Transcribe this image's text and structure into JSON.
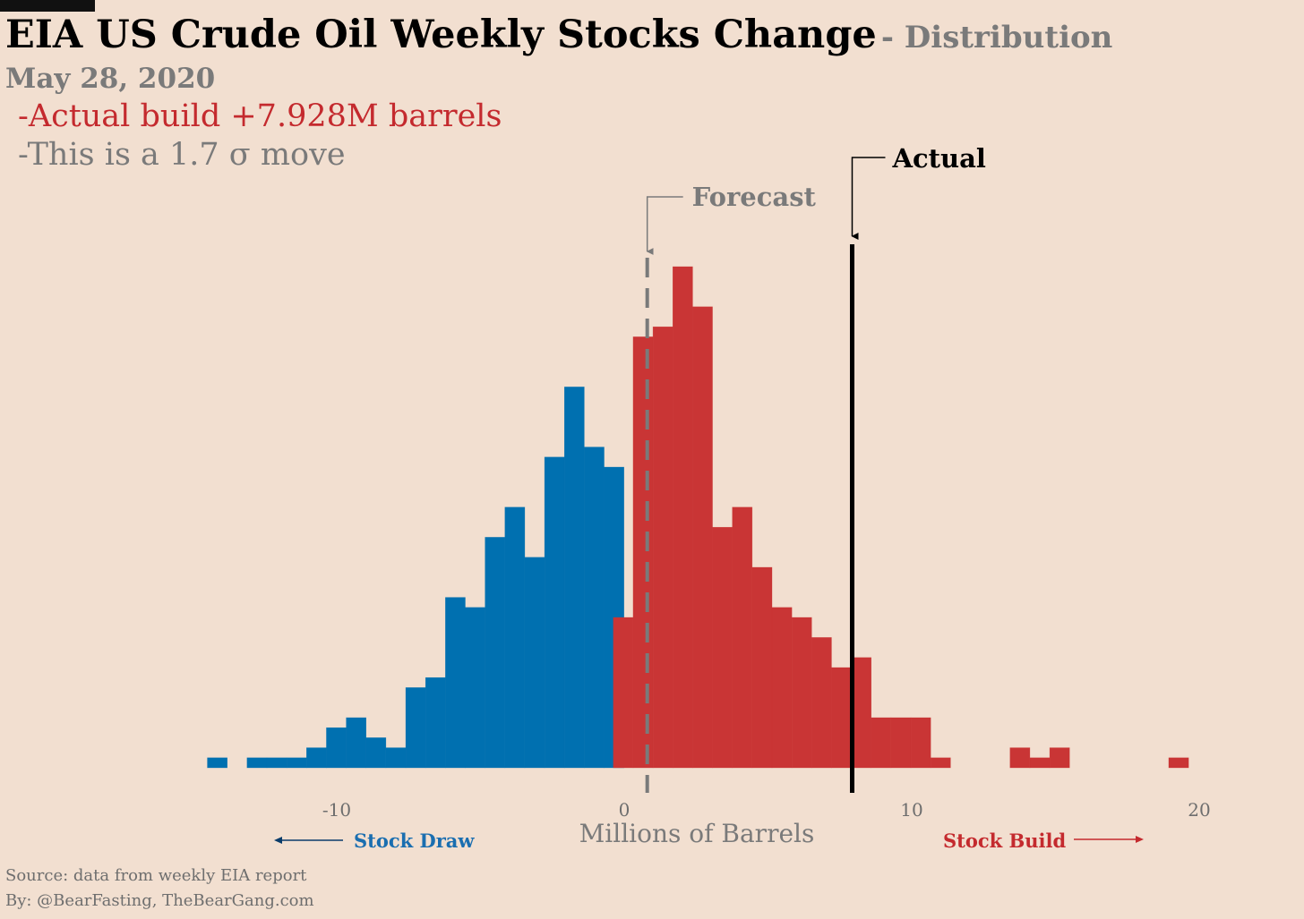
{
  "title": {
    "main": "EIA US Crude Oil Weekly Stocks Change",
    "sub": "- Distribution"
  },
  "date": "May 28, 2020",
  "notes": {
    "actual": "-Actual build +7.928M barrels",
    "sigma": "-This is a 1.7 σ move"
  },
  "footer": {
    "source": "Source: data from  weekly EIA report",
    "by": "By: @BearFasting, TheBearGang.com"
  },
  "colors": {
    "background": "#f2dfd0",
    "draw": "#0070b0",
    "build": "#c93535",
    "forecast": "#7a7a7a",
    "actual": "#000000"
  },
  "chart_data": {
    "type": "bar",
    "subtype": "histogram",
    "xlabel": "Millions of Barrels",
    "xlim": [
      -15.5,
      21.5
    ],
    "xticks": [
      -10,
      0,
      10,
      20
    ],
    "bin_width": 0.69,
    "series": [
      {
        "name": "Stock Draw",
        "color": "#0070b0",
        "bins": [
          {
            "x0": -14.5,
            "count": 1
          },
          {
            "x0": -13.12,
            "count": 1
          },
          {
            "x0": -12.43,
            "count": 1
          },
          {
            "x0": -11.74,
            "count": 1
          },
          {
            "x0": -11.05,
            "count": 2
          },
          {
            "x0": -10.36,
            "count": 4
          },
          {
            "x0": -9.67,
            "count": 5
          },
          {
            "x0": -8.98,
            "count": 3
          },
          {
            "x0": -8.29,
            "count": 2
          },
          {
            "x0": -7.6,
            "count": 8
          },
          {
            "x0": -6.91,
            "count": 9
          },
          {
            "x0": -6.22,
            "count": 17
          },
          {
            "x0": -5.53,
            "count": 16
          },
          {
            "x0": -4.84,
            "count": 23
          },
          {
            "x0": -4.15,
            "count": 26
          },
          {
            "x0": -3.46,
            "count": 21
          },
          {
            "x0": -2.77,
            "count": 31
          },
          {
            "x0": -2.08,
            "count": 38
          },
          {
            "x0": -1.39,
            "count": 32
          },
          {
            "x0": -0.7,
            "count": 30
          }
        ]
      },
      {
        "name": "Stock Build",
        "color": "#c93535",
        "bins": [
          {
            "x0": -0.38,
            "count": 15
          },
          {
            "x0": 0.31,
            "count": 43
          },
          {
            "x0": 1.0,
            "count": 44
          },
          {
            "x0": 1.69,
            "count": 50
          },
          {
            "x0": 2.38,
            "count": 46
          },
          {
            "x0": 3.07,
            "count": 24
          },
          {
            "x0": 3.76,
            "count": 26
          },
          {
            "x0": 4.45,
            "count": 20
          },
          {
            "x0": 5.14,
            "count": 16
          },
          {
            "x0": 5.83,
            "count": 15
          },
          {
            "x0": 6.52,
            "count": 13
          },
          {
            "x0": 7.21,
            "count": 10
          },
          {
            "x0": 7.9,
            "count": 11
          },
          {
            "x0": 8.59,
            "count": 5
          },
          {
            "x0": 9.28,
            "count": 5
          },
          {
            "x0": 9.97,
            "count": 5
          },
          {
            "x0": 10.66,
            "count": 1
          },
          {
            "x0": 13.42,
            "count": 2
          },
          {
            "x0": 14.11,
            "count": 1
          },
          {
            "x0": 14.8,
            "count": 2
          },
          {
            "x0": 18.94,
            "count": 1
          }
        ]
      }
    ],
    "forecast": {
      "label": "Forecast",
      "value": 0.8
    },
    "actual": {
      "label": "Actual",
      "value": 7.928
    },
    "annotations": {
      "draw": "Stock Draw",
      "build": "Stock Build"
    },
    "grid": false,
    "legend": "none"
  }
}
